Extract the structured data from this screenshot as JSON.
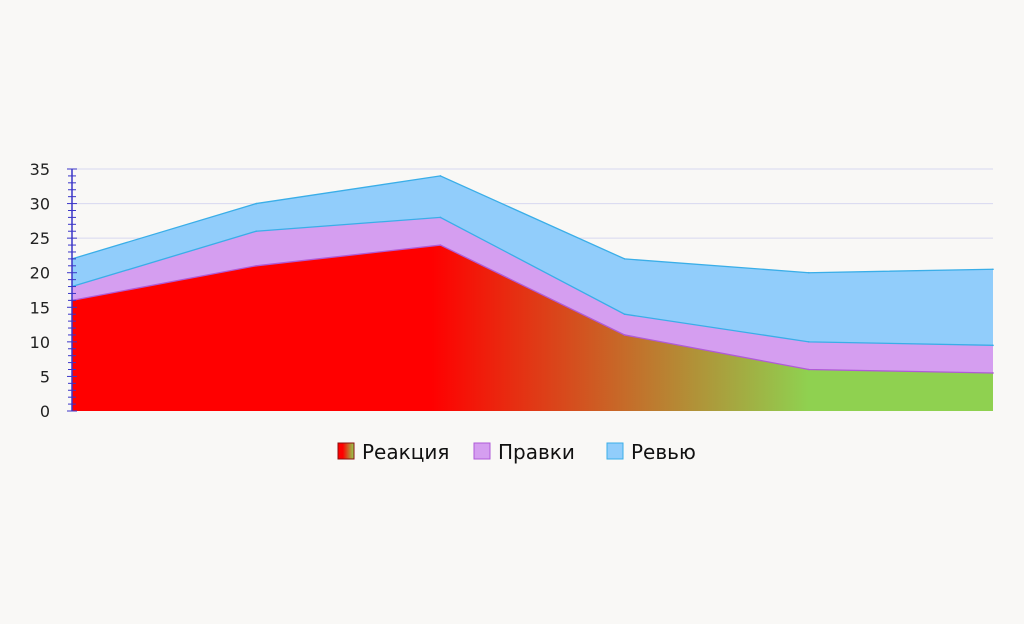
{
  "chart_data": {
    "type": "area",
    "stacked": true,
    "x": [
      1,
      2,
      3,
      4,
      5,
      6
    ],
    "ylim": [
      0,
      35
    ],
    "yticks": [
      0,
      5,
      10,
      15,
      20,
      25,
      30,
      35
    ],
    "grid": true,
    "legend_position": "bottom",
    "series": [
      {
        "name": "Реакция",
        "values": [
          16,
          21,
          24,
          11,
          6,
          5.5
        ]
      },
      {
        "name": "Правки",
        "values": [
          2,
          5,
          4,
          3,
          4,
          4
        ]
      },
      {
        "name": "Ревью",
        "values": [
          4,
          4,
          6,
          8,
          10,
          11
        ]
      }
    ],
    "colors": {
      "reaction_start": "#ff0000",
      "reaction_end": "#8fd150",
      "edits": "#d59ef0",
      "edits_stroke": "#b05ad8",
      "review": "#91cdfb",
      "review_stroke": "#3aaee8",
      "grid": "#d8d8f0",
      "axis": "#3a35c8"
    }
  }
}
